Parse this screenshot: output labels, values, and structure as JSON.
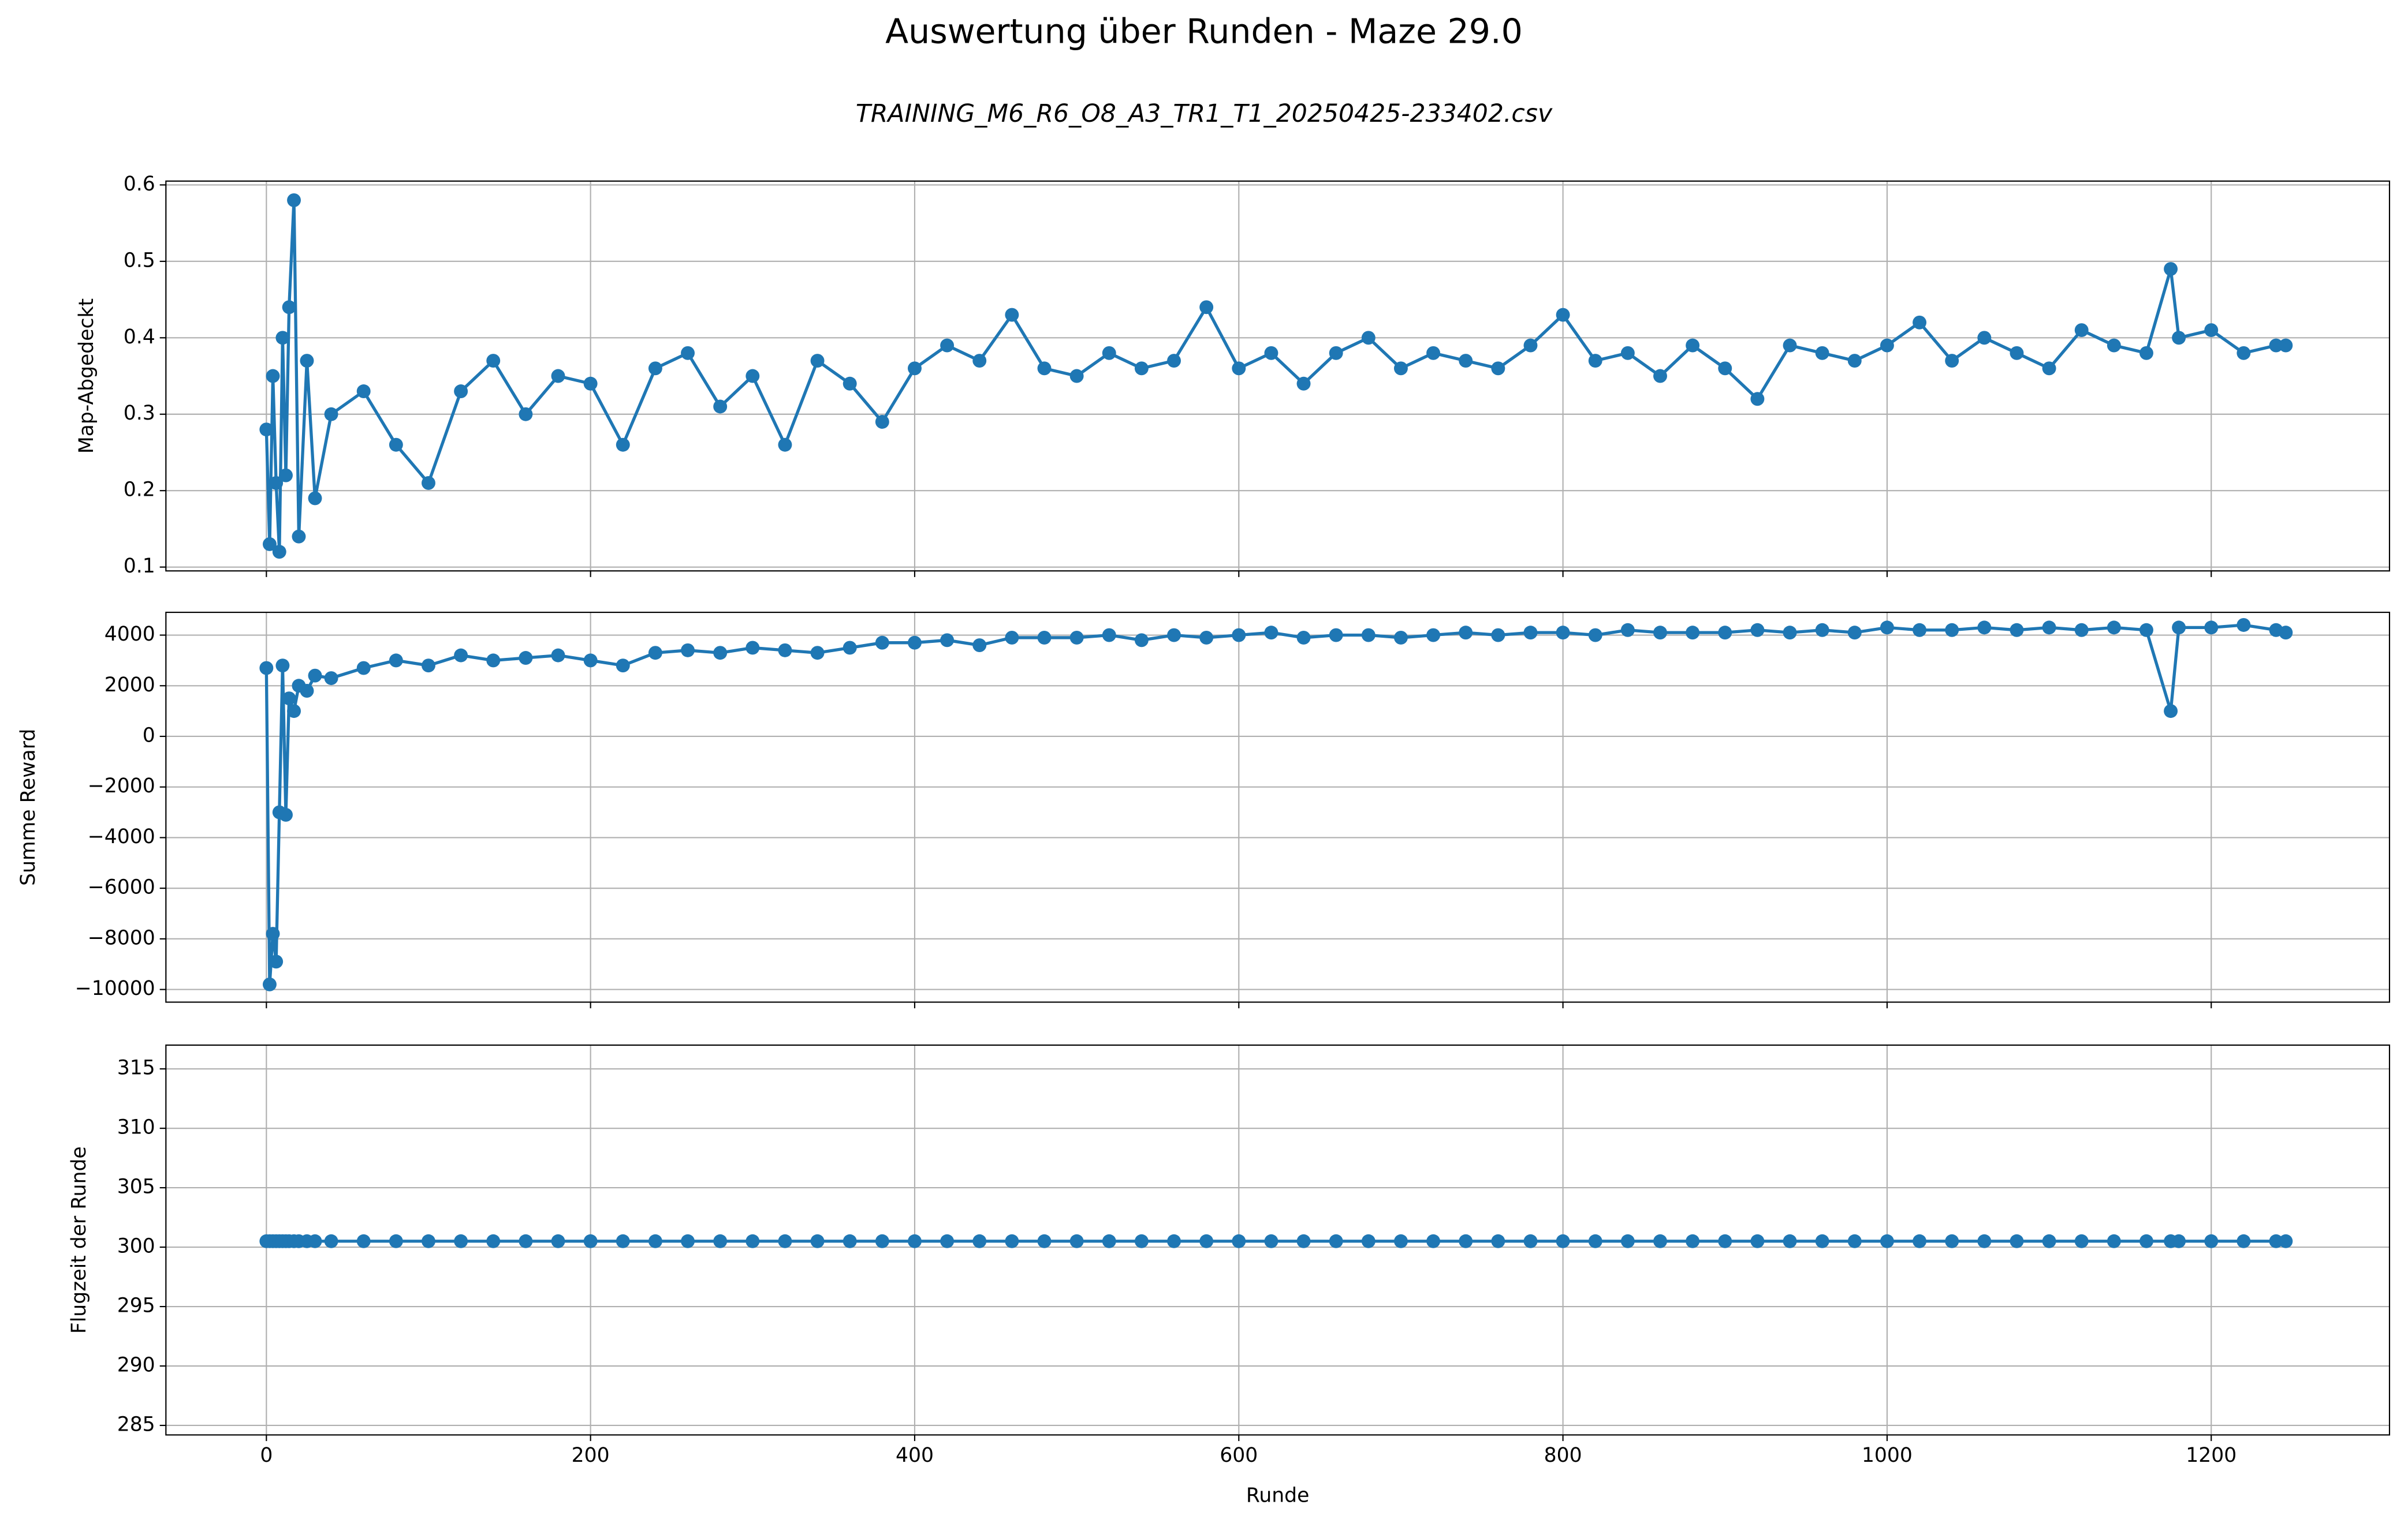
{
  "title": "Auswertung über Runden - Maze 29.0",
  "subtitle": "TRAINING_M6_R6_O8_A3_TR1_T1_20250425-233402.csv",
  "chart_data": [
    {
      "type": "line",
      "ylabel": "Map-Abgedeckt",
      "x": [
        0,
        2,
        4,
        6,
        8,
        10,
        12,
        14,
        17,
        20,
        25,
        30,
        40,
        60,
        80,
        100,
        120,
        140,
        160,
        180,
        200,
        220,
        240,
        260,
        280,
        300,
        320,
        340,
        360,
        380,
        400,
        420,
        440,
        460,
        480,
        500,
        520,
        540,
        560,
        580,
        600,
        620,
        640,
        660,
        680,
        700,
        720,
        740,
        760,
        780,
        800,
        820,
        840,
        860,
        880,
        900,
        920,
        940,
        960,
        980,
        1000,
        1020,
        1040,
        1060,
        1080,
        1100,
        1120,
        1140,
        1160,
        1175,
        1180,
        1200,
        1220,
        1240,
        1246
      ],
      "series": [
        {
          "color": "#1f77b4",
          "values": [
            0.28,
            0.13,
            0.35,
            0.21,
            0.12,
            0.4,
            0.22,
            0.44,
            0.58,
            0.14,
            0.37,
            0.19,
            0.3,
            0.33,
            0.26,
            0.21,
            0.33,
            0.37,
            0.3,
            0.35,
            0.34,
            0.26,
            0.36,
            0.38,
            0.31,
            0.35,
            0.26,
            0.37,
            0.34,
            0.29,
            0.36,
            0.39,
            0.37,
            0.43,
            0.36,
            0.35,
            0.38,
            0.36,
            0.37,
            0.44,
            0.36,
            0.38,
            0.34,
            0.38,
            0.4,
            0.36,
            0.38,
            0.37,
            0.36,
            0.39,
            0.43,
            0.37,
            0.38,
            0.35,
            0.39,
            0.36,
            0.32,
            0.39,
            0.38,
            0.37,
            0.39,
            0.42,
            0.37,
            0.4,
            0.38,
            0.36,
            0.41,
            0.39,
            0.38,
            0.49,
            0.4,
            0.41,
            0.38,
            0.39,
            0.39
          ]
        }
      ],
      "xlim": [
        -62,
        1310
      ],
      "xticks": [
        0,
        200,
        400,
        600,
        800,
        1000,
        1200
      ],
      "ylim": [
        0.095,
        0.605
      ],
      "yticks": [
        0.1,
        0.2,
        0.3,
        0.4,
        0.5,
        0.6
      ],
      "grid": true
    },
    {
      "type": "line",
      "ylabel": "Summe Reward",
      "x": [
        0,
        2,
        4,
        6,
        8,
        10,
        12,
        14,
        17,
        20,
        25,
        30,
        40,
        60,
        80,
        100,
        120,
        140,
        160,
        180,
        200,
        220,
        240,
        260,
        280,
        300,
        320,
        340,
        360,
        380,
        400,
        420,
        440,
        460,
        480,
        500,
        520,
        540,
        560,
        580,
        600,
        620,
        640,
        660,
        680,
        700,
        720,
        740,
        760,
        780,
        800,
        820,
        840,
        860,
        880,
        900,
        920,
        940,
        960,
        980,
        1000,
        1020,
        1040,
        1060,
        1080,
        1100,
        1120,
        1140,
        1160,
        1175,
        1180,
        1200,
        1220,
        1240,
        1246
      ],
      "series": [
        {
          "color": "#1f77b4",
          "values": [
            2700,
            -9800,
            -7800,
            -8900,
            -3000,
            2800,
            -3100,
            1500,
            1000,
            2000,
            1800,
            2400,
            2300,
            2700,
            3000,
            2800,
            3200,
            3000,
            3100,
            3200,
            3000,
            2800,
            3300,
            3400,
            3300,
            3500,
            3400,
            3300,
            3500,
            3700,
            3700,
            3800,
            3600,
            3900,
            3900,
            3900,
            4000,
            3800,
            4000,
            3900,
            4000,
            4100,
            3900,
            4000,
            4000,
            3900,
            4000,
            4100,
            4000,
            4100,
            4100,
            4000,
            4200,
            4100,
            4100,
            4100,
            4200,
            4100,
            4200,
            4100,
            4300,
            4200,
            4200,
            4300,
            4200,
            4300,
            4200,
            4300,
            4200,
            1000,
            4300,
            4300,
            4400,
            4200,
            4100
          ]
        }
      ],
      "xlim": [
        -62,
        1310
      ],
      "xticks": [
        0,
        200,
        400,
        600,
        800,
        1000,
        1200
      ],
      "ylim": [
        -10500,
        4900
      ],
      "yticks": [
        -10000,
        -8000,
        -6000,
        -4000,
        -2000,
        0,
        2000,
        4000
      ],
      "grid": true
    },
    {
      "type": "line",
      "ylabel": "Flugzeit der Runde",
      "xlabel": "Runde",
      "x": [
        0,
        2,
        4,
        6,
        8,
        10,
        12,
        14,
        17,
        20,
        25,
        30,
        40,
        60,
        80,
        100,
        120,
        140,
        160,
        180,
        200,
        220,
        240,
        260,
        280,
        300,
        320,
        340,
        360,
        380,
        400,
        420,
        440,
        460,
        480,
        500,
        520,
        540,
        560,
        580,
        600,
        620,
        640,
        660,
        680,
        700,
        720,
        740,
        760,
        780,
        800,
        820,
        840,
        860,
        880,
        900,
        920,
        940,
        960,
        980,
        1000,
        1020,
        1040,
        1060,
        1080,
        1100,
        1120,
        1140,
        1160,
        1175,
        1180,
        1200,
        1220,
        1240,
        1246
      ],
      "series": [
        {
          "color": "#1f77b4",
          "values": [
            300.5,
            300.5,
            300.5,
            300.5,
            300.5,
            300.5,
            300.5,
            300.5,
            300.5,
            300.5,
            300.5,
            300.5,
            300.5,
            300.5,
            300.5,
            300.5,
            300.5,
            300.5,
            300.5,
            300.5,
            300.5,
            300.5,
            300.5,
            300.5,
            300.5,
            300.5,
            300.5,
            300.5,
            300.5,
            300.5,
            300.5,
            300.5,
            300.5,
            300.5,
            300.5,
            300.5,
            300.5,
            300.5,
            300.5,
            300.5,
            300.5,
            300.5,
            300.5,
            300.5,
            300.5,
            300.5,
            300.5,
            300.5,
            300.5,
            300.5,
            300.5,
            300.5,
            300.5,
            300.5,
            300.5,
            300.5,
            300.5,
            300.5,
            300.5,
            300.5,
            300.5,
            300.5,
            300.5,
            300.5,
            300.5,
            300.5,
            300.5,
            300.5,
            300.5,
            300.5,
            300.5,
            300.5,
            300.5,
            300.5,
            300.5
          ]
        }
      ],
      "xlim": [
        -62,
        1310
      ],
      "xticks": [
        0,
        200,
        400,
        600,
        800,
        1000,
        1200
      ],
      "ylim": [
        284.2,
        317
      ],
      "yticks": [
        285,
        290,
        295,
        300,
        305,
        310,
        315
      ],
      "grid": true
    }
  ]
}
